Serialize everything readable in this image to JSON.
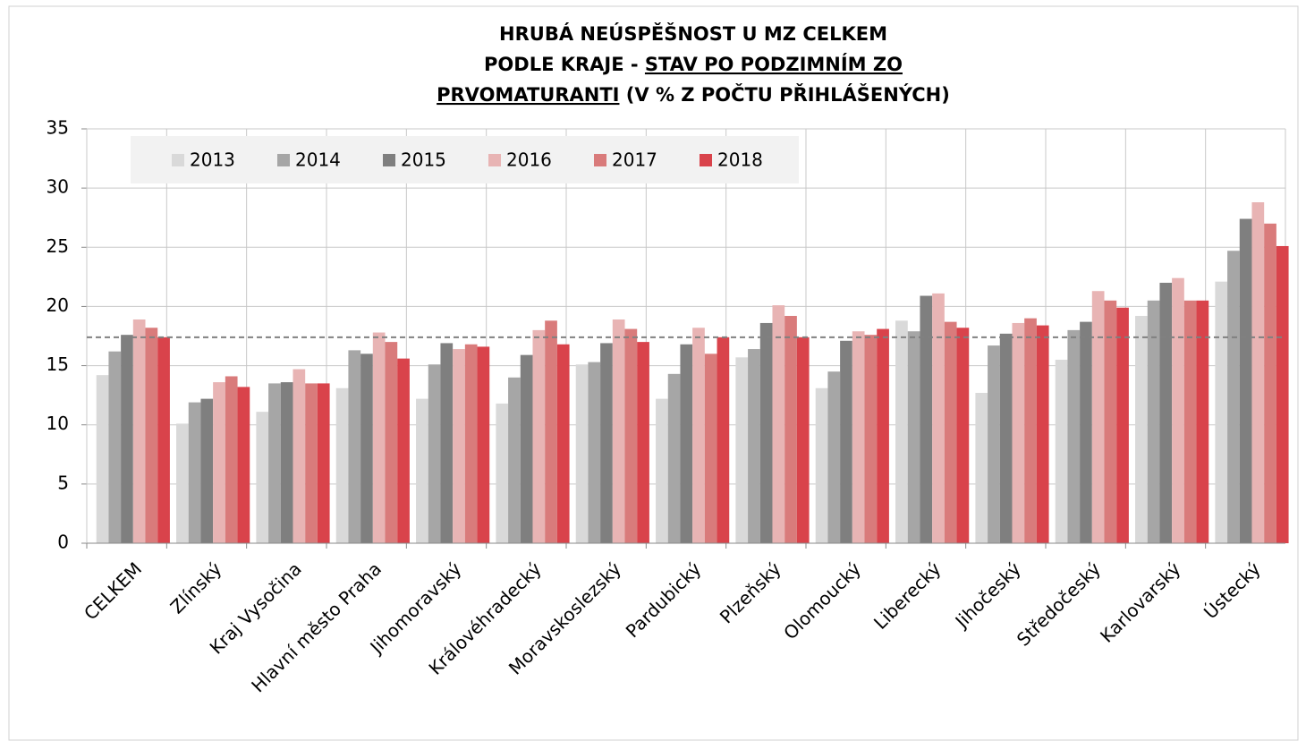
{
  "chart_data": {
    "type": "bar",
    "title_lines": [
      [
        {
          "text": "HRUBÁ NEÚSPĚŠNOST U MZ CELKEM"
        }
      ],
      [
        {
          "text": "PODLE KRAJE - "
        },
        {
          "text": "STAV PO PODZIMNÍM ZO",
          "underline": true
        }
      ],
      [
        {
          "text": "PRVOMATURANTI",
          "underline": true
        },
        {
          "text": " (V % Z POČTU PŘIHLÁŠENÝCH)"
        }
      ]
    ],
    "categories": [
      "CELKEM",
      "Zlínský",
      "Kraj Vysočina",
      "Hlavní město Praha",
      "Jihomoravský",
      "Královéhradecký",
      "Moravskoslezský",
      "Pardubický",
      "Plzeňský",
      "Olomoucký",
      "Liberecký",
      "Jihočeský",
      "Středočeský",
      "Karlovarský",
      "Ústecký"
    ],
    "series": [
      {
        "name": "2013",
        "color": "#d9d9d9",
        "values": [
          14.2,
          10.1,
          11.1,
          13.1,
          12.2,
          11.8,
          15.1,
          12.2,
          15.7,
          13.1,
          18.8,
          12.7,
          15.5,
          19.2,
          22.1
        ]
      },
      {
        "name": "2014",
        "color": "#a6a6a6",
        "values": [
          16.2,
          11.9,
          13.5,
          16.3,
          15.1,
          14.0,
          15.3,
          14.3,
          16.4,
          14.5,
          17.9,
          16.7,
          18.0,
          20.5,
          24.7
        ]
      },
      {
        "name": "2015",
        "color": "#7f7f7f",
        "values": [
          17.6,
          12.2,
          13.6,
          16.0,
          16.9,
          15.9,
          16.9,
          16.8,
          18.6,
          17.1,
          20.9,
          17.7,
          18.7,
          22.0,
          27.4
        ]
      },
      {
        "name": "2016",
        "color": "#e8b4b4",
        "values": [
          18.9,
          13.6,
          14.7,
          17.8,
          16.4,
          18.0,
          18.9,
          18.2,
          20.1,
          17.9,
          21.1,
          18.6,
          21.3,
          22.4,
          28.8
        ]
      },
      {
        "name": "2017",
        "color": "#d97b7b",
        "values": [
          18.2,
          14.1,
          13.5,
          17.0,
          16.8,
          18.8,
          18.1,
          16.0,
          19.2,
          17.6,
          18.7,
          19.0,
          20.5,
          20.5,
          27.0
        ]
      },
      {
        "name": "2018",
        "color": "#d9434b",
        "values": [
          17.4,
          13.2,
          13.5,
          15.6,
          16.6,
          16.8,
          17.0,
          17.4,
          17.4,
          18.1,
          18.2,
          18.4,
          19.9,
          20.5,
          25.1
        ]
      }
    ],
    "reference_line": 17.4,
    "ylim": [
      0,
      35
    ],
    "yticks": [
      0,
      5,
      10,
      15,
      20,
      25,
      30,
      35
    ],
    "grid": true,
    "legend": "top-left"
  }
}
